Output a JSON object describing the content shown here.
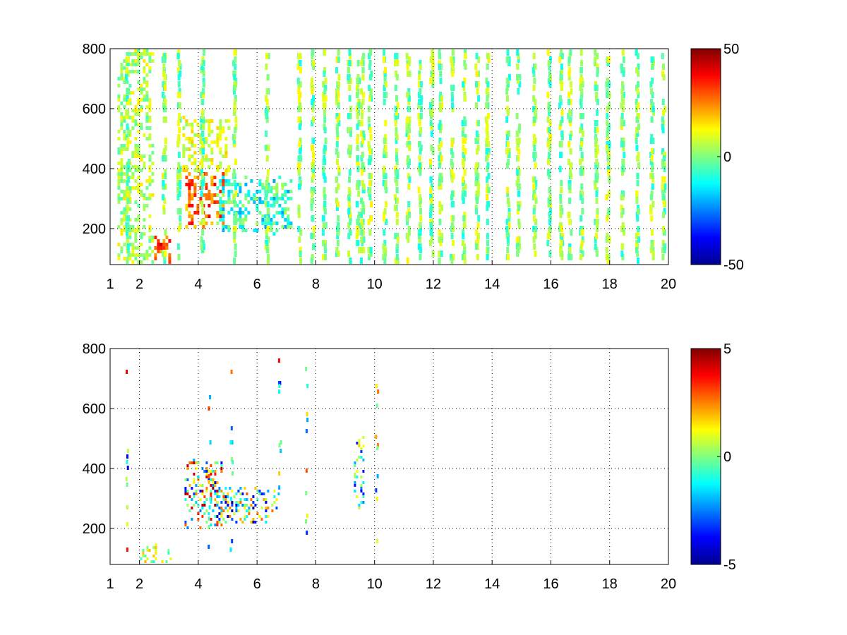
{
  "figure": {
    "background": "#ffffff",
    "colormap": "jet"
  },
  "chart_data": [
    {
      "type": "heatmap",
      "title": "",
      "xlabel": "",
      "ylabel": "",
      "xlim": [
        1,
        20
      ],
      "ylim": [
        80,
        800
      ],
      "xscale": "linear",
      "grid": true,
      "xticks": [
        1,
        2,
        4,
        6,
        8,
        10,
        12,
        14,
        16,
        18,
        20
      ],
      "yticks": [
        200,
        400,
        600,
        800
      ],
      "xtick_labels": [
        "1",
        "2",
        "4",
        "6",
        "8",
        "10",
        "12",
        "14",
        "16",
        "18",
        "20"
      ],
      "ytick_labels": [
        "200",
        "400",
        "600",
        "800"
      ],
      "colorbar": {
        "range": [
          -50,
          50
        ],
        "tick_labels": [
          "50",
          "0",
          "-50"
        ],
        "ticks": [
          50,
          0,
          -50
        ]
      },
      "clusters": [
        {
          "x": [
            2.45,
            3.05
          ],
          "y": [
            80,
            170
          ],
          "values": [
            20,
            45
          ]
        },
        {
          "x": [
            3.5,
            4.8
          ],
          "y": [
            200,
            380
          ],
          "values": [
            15,
            40
          ]
        },
        {
          "x": [
            3.4,
            5.0
          ],
          "y": [
            380,
            560
          ],
          "values": [
            2,
            18
          ]
        },
        {
          "x": [
            4.6,
            7.1
          ],
          "y": [
            180,
            360
          ],
          "values": [
            -22,
            5
          ]
        },
        {
          "x": [
            1.2,
            2.4
          ],
          "y": [
            80,
            800
          ],
          "values": [
            -5,
            15
          ]
        }
      ],
      "stripes": [
        1.55,
        2.8,
        3.3,
        4.1,
        5.2,
        6.3,
        7.4,
        7.85,
        8.25,
        8.7,
        9.1,
        9.4,
        9.55,
        9.8,
        10.3,
        10.7,
        11.1,
        11.5,
        11.9,
        12.2,
        12.6,
        13.0,
        13.45,
        13.8,
        14.5,
        14.85,
        15.4,
        15.9,
        16.3,
        16.6,
        17.0,
        17.5,
        17.9,
        18.4,
        18.9,
        19.4,
        19.8,
        20.0
      ]
    },
    {
      "type": "heatmap",
      "title": "",
      "xlabel": "",
      "ylabel": "",
      "xlim": [
        1,
        20
      ],
      "ylim": [
        80,
        800
      ],
      "xscale": "linear",
      "grid": true,
      "xticks": [
        1,
        2,
        4,
        6,
        8,
        10,
        12,
        14,
        16,
        18,
        20
      ],
      "yticks": [
        200,
        400,
        600,
        800
      ],
      "xtick_labels": [
        "1",
        "2",
        "4",
        "6",
        "8",
        "10",
        "12",
        "14",
        "16",
        "18",
        "20"
      ],
      "ytick_labels": [
        "200",
        "400",
        "600",
        "800"
      ],
      "colorbar": {
        "range": [
          -5,
          5
        ],
        "tick_labels": [
          "5",
          "0",
          "-5"
        ],
        "ticks": [
          5,
          0,
          -5
        ]
      },
      "clusters": [
        {
          "x": [
            3.5,
            4.8
          ],
          "y": [
            200,
            420
          ],
          "values": [
            -4,
            5
          ]
        },
        {
          "x": [
            4.6,
            6.7
          ],
          "y": [
            210,
            330
          ],
          "values": [
            -5,
            3
          ]
        },
        {
          "x": [
            2.0,
            3.0
          ],
          "y": [
            80,
            140
          ],
          "values": [
            -1,
            2
          ]
        },
        {
          "x": [
            9.3,
            9.6
          ],
          "y": [
            260,
            500
          ],
          "values": [
            -4,
            2
          ]
        }
      ],
      "stripes": [
        1.55,
        4.35,
        5.1,
        6.75,
        7.65,
        10.05
      ]
    }
  ]
}
